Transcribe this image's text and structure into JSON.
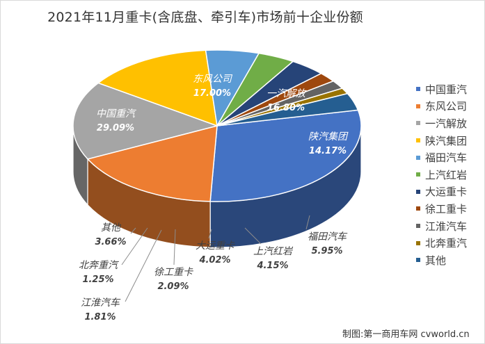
{
  "credit": "制图:第一商用车网 cvworld.cn",
  "chart_data": {
    "type": "pie",
    "title": "2021年11月重卡(含底盘、牵引车)市场前十企业份额",
    "legend_position": "right",
    "slices": [
      {
        "label": "中国重汽",
        "value": 29.09,
        "value_text": "29.09%",
        "color": "#4472c4"
      },
      {
        "label": "东风公司",
        "value": 17.0,
        "value_text": "17.00%",
        "color": "#ed7d31"
      },
      {
        "label": "一汽解放",
        "value": 16.8,
        "value_text": "16.80%",
        "color": "#a5a5a5"
      },
      {
        "label": "陕汽集团",
        "value": 14.17,
        "value_text": "14.17%",
        "color": "#ffc000"
      },
      {
        "label": "福田汽车",
        "value": 5.95,
        "value_text": "5.95%",
        "color": "#5b9bd5"
      },
      {
        "label": "上汽红岩",
        "value": 4.15,
        "value_text": "4.15%",
        "color": "#70ad47"
      },
      {
        "label": "大运重卡",
        "value": 4.02,
        "value_text": "4.02%",
        "color": "#264478"
      },
      {
        "label": "徐工重卡",
        "value": 2.09,
        "value_text": "2.09%",
        "color": "#9e480e"
      },
      {
        "label": "江淮汽车",
        "value": 1.81,
        "value_text": "1.81%",
        "color": "#636363"
      },
      {
        "label": "北奔重汽",
        "value": 1.25,
        "value_text": "1.25%",
        "color": "#997300"
      },
      {
        "label": "其他",
        "value": 3.66,
        "value_text": "3.66%",
        "color": "#255e91"
      }
    ]
  }
}
